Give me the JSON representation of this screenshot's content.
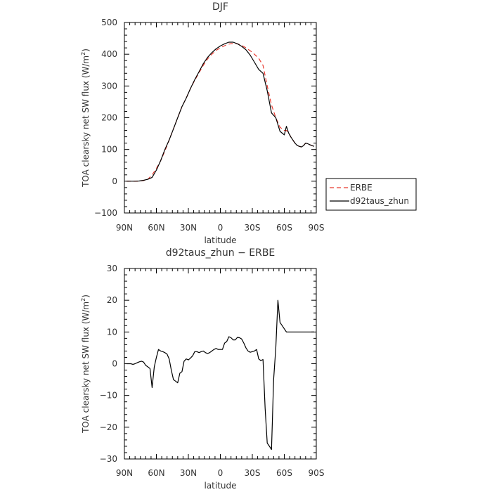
{
  "chart_data": [
    {
      "type": "line",
      "title": "DJF",
      "xlabel": "latitude",
      "ylabel": "TOA clearsky net SW flux (W/m",
      "ylabel_superscript": "2",
      "ylabel_close": ")",
      "xlim": [
        90,
        -90
      ],
      "ylim": [
        -100,
        500
      ],
      "xticks": [
        {
          "value": 90,
          "label": "90N"
        },
        {
          "value": 60,
          "label": "60N"
        },
        {
          "value": 30,
          "label": "30N"
        },
        {
          "value": 0,
          "label": "0"
        },
        {
          "value": -30,
          "label": "30S"
        },
        {
          "value": -60,
          "label": "60S"
        },
        {
          "value": -90,
          "label": "90S"
        }
      ],
      "yticks": [
        -100,
        0,
        100,
        200,
        300,
        400,
        500
      ],
      "legend": {
        "position": "right",
        "entries": [
          "ERBE",
          "d92taus_zhun"
        ]
      },
      "series": [
        {
          "name": "ERBE",
          "color": "#e8392e",
          "dash": "dashed",
          "x": [
            88,
            84,
            80,
            76,
            72,
            68,
            64,
            60,
            56,
            52,
            48,
            44,
            40,
            36,
            32,
            28,
            24,
            20,
            16,
            12,
            8,
            4,
            0,
            -4,
            -8,
            -12,
            -16,
            -20,
            -24,
            -28,
            -32,
            -36,
            -40,
            -44,
            -48,
            -52,
            -56,
            -60,
            -62,
            -64,
            -66,
            -68,
            -70,
            -72,
            -74,
            -76,
            -78,
            -80,
            -82,
            -84,
            -86,
            -88
          ],
          "y": [
            0,
            0,
            0,
            0.3,
            2,
            6,
            20,
            40,
            65,
            95,
            130,
            165,
            200,
            235,
            262,
            292,
            318,
            342,
            365,
            385,
            400,
            412,
            420,
            427,
            432,
            434,
            433,
            428,
            420,
            411,
            400,
            387,
            365,
            300,
            240,
            200,
            170,
            160,
            160,
            152,
            140,
            130,
            120,
            113,
            110,
            108,
            112,
            120,
            118,
            115,
            112,
            110
          ]
        },
        {
          "name": "d92taus_zhun",
          "color": "#000000",
          "dash": "solid",
          "x": [
            88,
            84,
            80,
            76,
            72,
            68,
            64,
            60,
            56,
            52,
            48,
            44,
            40,
            36,
            32,
            28,
            24,
            20,
            16,
            12,
            8,
            4,
            0,
            -4,
            -8,
            -12,
            -16,
            -20,
            -24,
            -28,
            -32,
            -36,
            -40,
            -44,
            -48,
            -52,
            -56,
            -60,
            -62,
            -64,
            -66,
            -68,
            -70,
            -72,
            -74,
            -76,
            -78,
            -80,
            -82,
            -84,
            -86,
            -88
          ],
          "y": [
            0,
            0,
            0,
            0.8,
            3,
            6,
            12,
            35,
            65,
            100,
            130,
            165,
            200,
            235,
            262,
            292,
            320,
            345,
            370,
            390,
            405,
            417,
            426,
            433,
            438,
            438,
            433,
            425,
            414,
            397,
            375,
            352,
            340,
            285,
            215,
            200,
            157,
            146,
            173,
            152,
            140,
            130,
            120,
            113,
            110,
            108,
            112,
            120,
            118,
            115,
            112,
            110
          ]
        }
      ]
    },
    {
      "type": "line",
      "title": "d92taus_zhun − ERBE",
      "xlabel": "latitude",
      "ylabel": "TOA clearsky net SW flux (W/m",
      "ylabel_superscript": "2",
      "ylabel_close": ")",
      "xlim": [
        90,
        -90
      ],
      "ylim": [
        -30,
        30
      ],
      "xticks": [
        {
          "value": 90,
          "label": "90N"
        },
        {
          "value": 60,
          "label": "60N"
        },
        {
          "value": 30,
          "label": "30N"
        },
        {
          "value": 0,
          "label": "0"
        },
        {
          "value": -30,
          "label": "30S"
        },
        {
          "value": -60,
          "label": "60S"
        },
        {
          "value": -90,
          "label": "90S"
        }
      ],
      "yticks": [
        -30,
        -20,
        -10,
        0,
        10,
        20,
        30
      ],
      "series": [
        {
          "color": "#000000",
          "dash": "solid",
          "x": [
            88,
            86,
            84,
            82,
            80,
            78,
            76,
            74,
            72,
            70,
            68,
            66,
            64,
            62,
            60,
            58,
            56,
            54,
            52,
            50,
            48,
            46,
            44,
            42,
            40,
            38,
            36,
            34,
            32,
            30,
            28,
            26,
            24,
            22,
            20,
            18,
            16,
            14,
            12,
            10,
            8,
            6,
            4,
            2,
            0,
            -2,
            -4,
            -6,
            -8,
            -10,
            -12,
            -14,
            -16,
            -18,
            -20,
            -22,
            -24,
            -26,
            -28,
            -30,
            -32,
            -34,
            -36,
            -38,
            -40,
            -42,
            -44,
            -46,
            -48,
            -50,
            -52,
            -54,
            -56,
            -58,
            -60,
            -62,
            -64,
            -66,
            -68,
            -70,
            -72,
            -74,
            -76,
            -78,
            -80,
            -82,
            -84,
            -86,
            -88
          ],
          "y": [
            0,
            0,
            0,
            -0.2,
            0,
            0.3,
            0.6,
            0.8,
            0.5,
            -0.5,
            -1,
            -1.5,
            -7.5,
            -1,
            2,
            4.5,
            4,
            3.8,
            3.5,
            3,
            1.5,
            -2,
            -5,
            -5.5,
            -6,
            -3,
            -2.5,
            0.8,
            1.5,
            1.2,
            1.8,
            2.5,
            3.8,
            3.8,
            3.5,
            3.8,
            4,
            3.5,
            3.2,
            3.5,
            4,
            4.5,
            4.8,
            4.5,
            4.5,
            4.5,
            6.5,
            7,
            8.5,
            8.2,
            7.5,
            7.5,
            8.3,
            8.2,
            7.8,
            6.5,
            5,
            4,
            3.6,
            3.8,
            4,
            4.5,
            1.5,
            1,
            1.3,
            -14,
            -25,
            -26,
            -27,
            -5,
            5,
            20,
            13,
            12,
            11,
            10,
            10,
            10,
            10,
            10,
            10,
            10,
            10,
            10,
            10,
            10,
            10,
            10,
            10
          ]
        }
      ]
    }
  ]
}
